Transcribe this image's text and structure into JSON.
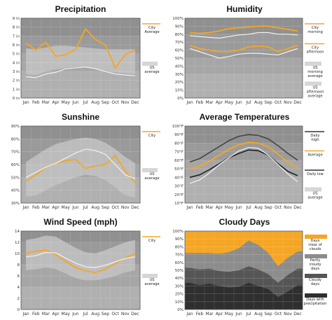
{
  "months": [
    "Jan",
    "Feb",
    "Mar",
    "Apr",
    "May",
    "Jun",
    "Jul",
    "Aug",
    "Sep",
    "Oct",
    "Nov",
    "Dec"
  ],
  "colors": {
    "city": "#f5a623",
    "us": "#d6d6d6",
    "band_dark": "#7d7d7d",
    "band_mid": "#a3a3a3",
    "band_light": "#c4c4c4",
    "grid": "#dddddd"
  },
  "chart_data": [
    {
      "id": "precipitation",
      "type": "line",
      "title": "Precipitation",
      "x": [
        "Jan",
        "Feb",
        "Mar",
        "Apr",
        "May",
        "Jun",
        "Jul",
        "Aug",
        "Sep",
        "Oct",
        "Nov",
        "Dec"
      ],
      "ylim": [
        0,
        9
      ],
      "yticks": [
        "0 in",
        "1 in",
        "2 in",
        "3 in",
        "4 in",
        "5 in",
        "6 in",
        "7 in",
        "8 in",
        "9 in"
      ],
      "grid": true,
      "legend": "right",
      "legend_entries": [
        "City Average",
        "US average"
      ],
      "series": [
        {
          "name": "City Average",
          "values": [
            6.2,
            5.4,
            6.3,
            4.7,
            4.9,
            5.5,
            7.8,
            6.6,
            6.0,
            3.4,
            4.9,
            5.4
          ]
        },
        {
          "name": "US average",
          "values": [
            2.4,
            2.3,
            2.7,
            2.9,
            3.3,
            3.4,
            3.5,
            3.3,
            3.0,
            2.7,
            2.6,
            2.5
          ]
        }
      ],
      "bands": [
        {
          "low": [
            2.7,
            2.6,
            3.0,
            3.2,
            3.4,
            3.5,
            3.5,
            3.3,
            3.1,
            2.9,
            2.8,
            2.7
          ],
          "high": [
            5.6,
            5.5,
            5.7,
            5.9,
            5.9,
            5.8,
            5.7,
            5.6,
            5.5,
            5.5,
            5.5,
            5.5
          ]
        }
      ]
    },
    {
      "id": "humidity",
      "type": "line",
      "title": "Humidity",
      "x": [
        "Jan",
        "Feb",
        "Mar",
        "Apr",
        "May",
        "Jun",
        "Jul",
        "Aug",
        "Sep",
        "Oct",
        "Nov",
        "Dec"
      ],
      "ylim": [
        0,
        100
      ],
      "yticks": [
        "0%",
        "10%",
        "20%",
        "30%",
        "40%",
        "50%",
        "60%",
        "70%",
        "80%",
        "90%",
        "100%"
      ],
      "grid": true,
      "legend": "right",
      "legend_entries": [
        "City morning",
        "City afternoon",
        "US morning average",
        "US afternoon average"
      ],
      "series": [
        {
          "name": "City morning",
          "values": [
            82,
            81,
            82,
            84,
            87,
            88,
            89,
            90,
            90,
            88,
            86,
            84
          ]
        },
        {
          "name": "City afternoon",
          "values": [
            66,
            62,
            60,
            58,
            58,
            60,
            64,
            65,
            64,
            58,
            62,
            66
          ]
        },
        {
          "name": "US morning average",
          "values": [
            78,
            77,
            76,
            75,
            77,
            79,
            80,
            82,
            82,
            80,
            80,
            79
          ]
        },
        {
          "name": "US afternoon average",
          "values": [
            62,
            58,
            54,
            50,
            52,
            55,
            56,
            56,
            55,
            54,
            58,
            62
          ]
        }
      ]
    },
    {
      "id": "sunshine",
      "type": "line",
      "title": "Sunshine",
      "x": [
        "Jan",
        "Feb",
        "Mar",
        "Apr",
        "May",
        "Jun",
        "Jul",
        "Aug",
        "Sep",
        "Oct",
        "Nov",
        "Dec"
      ],
      "ylim": [
        30,
        90
      ],
      "yticks": [
        "30%",
        "40%",
        "50%",
        "60%",
        "70%",
        "80%",
        "90%"
      ],
      "grid": true,
      "legend": "right",
      "legend_entries": [
        "City",
        "US average"
      ],
      "series": [
        {
          "name": "City",
          "values": [
            47,
            52,
            58,
            61,
            63,
            64,
            57,
            59,
            60,
            67,
            55,
            46
          ]
        },
        {
          "name": "US average",
          "values": [
            50,
            54,
            58,
            61,
            65,
            69,
            72,
            71,
            68,
            60,
            52,
            49
          ]
        }
      ],
      "bands": [
        {
          "low": [
            35,
            36,
            40,
            44,
            47,
            50,
            52,
            51,
            48,
            42,
            36,
            34
          ],
          "high": [
            62,
            67,
            72,
            76,
            78,
            80,
            81,
            80,
            77,
            72,
            66,
            61
          ]
        }
      ]
    },
    {
      "id": "temperatures",
      "type": "line",
      "title": "Average Temperatures",
      "x": [
        "Jan",
        "Feb",
        "Mar",
        "Apr",
        "May",
        "Jun",
        "Jul",
        "Aug",
        "Sep",
        "Oct",
        "Nov",
        "Dec"
      ],
      "ylim": [
        10,
        100
      ],
      "yticks": [
        "10°F",
        "20°F",
        "30°F",
        "40°F",
        "50°F",
        "60°F",
        "70°F",
        "80°F",
        "90°F",
        "100°F"
      ],
      "grid": true,
      "legend": "right",
      "legend_entries": [
        "Daily high",
        "Average",
        "Daily low",
        "US average"
      ],
      "series": [
        {
          "name": "Daily high",
          "values": [
            58,
            62,
            69,
            76,
            83,
            88,
            90,
            89,
            85,
            77,
            68,
            60
          ]
        },
        {
          "name": "Average",
          "values": [
            50,
            53,
            59,
            66,
            73,
            78,
            81,
            80,
            76,
            67,
            58,
            51
          ]
        },
        {
          "name": "Daily low",
          "values": [
            40,
            43,
            49,
            56,
            63,
            68,
            72,
            71,
            66,
            56,
            47,
            42
          ]
        },
        {
          "name": "US average",
          "values": [
            33,
            37,
            45,
            55,
            63,
            71,
            75,
            74,
            66,
            55,
            44,
            35
          ]
        }
      ]
    },
    {
      "id": "wind",
      "type": "line",
      "title": "Wind Speed (mph)",
      "x": [
        "Jan",
        "Feb",
        "Mar",
        "Apr",
        "May",
        "Jun",
        "Jul",
        "Aug",
        "Sep",
        "Oct",
        "Nov",
        "Dec"
      ],
      "ylim": [
        0,
        14
      ],
      "yticks": [
        "0",
        "2",
        "4",
        "6",
        "8",
        "10",
        "12",
        "14"
      ],
      "grid": true,
      "legend": "right",
      "legend_entries": [
        "City",
        "US average"
      ],
      "series": [
        {
          "name": "City",
          "values": [
            10,
            10.4,
            10.6,
            9.8,
            8.6,
            7.5,
            6.9,
            6.6,
            7.2,
            8.2,
            9.2,
            10
          ]
        },
        {
          "name": "US average",
          "values": [
            9.4,
            9.6,
            10.2,
            10.1,
            9.2,
            8.3,
            7.6,
            7.5,
            7.9,
            8.5,
            9.1,
            9.4
          ]
        }
      ],
      "bands": [
        {
          "low": [
            7,
            7.2,
            7.5,
            7.2,
            6.4,
            5.6,
            5.2,
            5.2,
            5.5,
            6,
            6.6,
            7
          ],
          "high": [
            12.4,
            12.7,
            13.2,
            13,
            12,
            11,
            10.2,
            10,
            10.6,
            11.3,
            12,
            12.4
          ]
        }
      ]
    },
    {
      "id": "cloudy",
      "type": "area",
      "title": "Cloudy Days",
      "x": [
        "Jan",
        "Feb",
        "Mar",
        "Apr",
        "May",
        "Jun",
        "Jul",
        "Aug",
        "Sep",
        "Oct",
        "Nov",
        "Dec"
      ],
      "ylim": [
        0,
        100
      ],
      "yticks": [
        "0%",
        "10%",
        "20%",
        "30%",
        "40%",
        "50%",
        "60%",
        "70%",
        "80%",
        "90%",
        "100%"
      ],
      "grid": true,
      "legend": "right",
      "legend_entries": [
        "Days clear of clouds",
        "Partly cloudy days",
        "Cloudy days",
        "Days with precipitation"
      ],
      "series": [
        {
          "name": "Days with precipitation",
          "values": [
            34,
            31,
            33,
            30,
            28,
            29,
            34,
            30,
            26,
            16,
            23,
            31
          ]
        },
        {
          "name": "Cloudy days",
          "values": [
            53,
            51,
            52,
            49,
            48,
            50,
            55,
            51,
            45,
            34,
            44,
            52
          ]
        },
        {
          "name": "Partly cloudy days",
          "values": [
            72,
            72,
            72,
            71,
            73,
            78,
            88,
            82,
            72,
            55,
            66,
            74
          ]
        },
        {
          "name": "Days clear of clouds",
          "values": [
            100,
            100,
            100,
            100,
            100,
            100,
            100,
            100,
            100,
            100,
            100,
            100
          ]
        }
      ]
    }
  ]
}
